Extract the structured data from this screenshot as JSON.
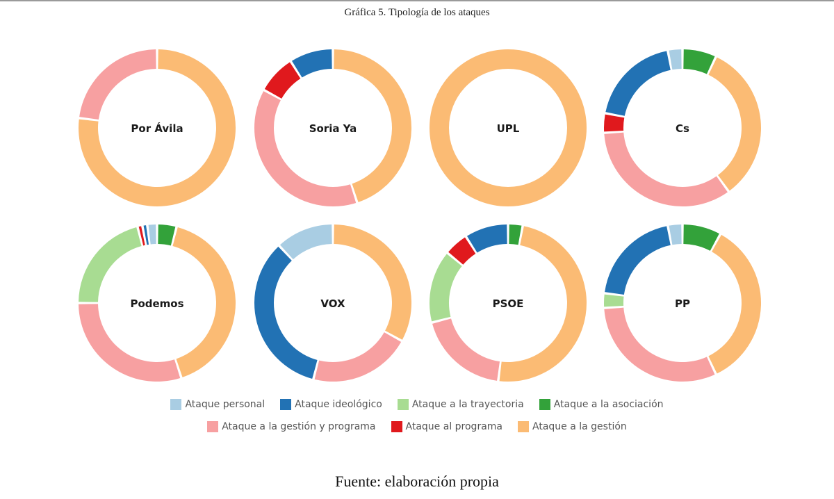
{
  "figure": {
    "title": "Gráfica 5. Tipología de los ataques",
    "source": "Fuente: elaboración propia"
  },
  "categories": [
    {
      "key": "personal",
      "label": "Ataque personal",
      "color": "#a9cde3"
    },
    {
      "key": "ideologico",
      "label": "Ataque ideológico",
      "color": "#2272b4"
    },
    {
      "key": "trayectoria",
      "label": "Ataque a la trayectoria",
      "color": "#a8dc92"
    },
    {
      "key": "asociacion",
      "label": "Ataque a la asociación",
      "color": "#33a23a"
    },
    {
      "key": "gestion_programa",
      "label": "Ataque a la gestión y programa",
      "color": "#f7a0a1"
    },
    {
      "key": "programa",
      "label": "Ataque al programa",
      "color": "#e0191d"
    },
    {
      "key": "gestion",
      "label": "Ataque a la gestión",
      "color": "#fbbb74"
    }
  ],
  "legend_rows": [
    [
      "personal",
      "ideologico",
      "trayectoria",
      "asociacion"
    ],
    [
      "gestion_programa",
      "programa",
      "gestion"
    ]
  ],
  "chart_data": {
    "type": "pie",
    "variant": "donut",
    "unit": "percent",
    "legend_position": "bottom",
    "grid": false,
    "charts": [
      {
        "name": "Por Ávila",
        "slices": {
          "gestion": 77,
          "gestion_programa": 23
        }
      },
      {
        "name": "Soria Ya",
        "slices": {
          "gestion": 45,
          "gestion_programa": 38,
          "programa": 8,
          "ideologico": 9
        }
      },
      {
        "name": "UPL",
        "slices": {
          "gestion": 100
        }
      },
      {
        "name": "Cs",
        "slices": {
          "asociacion": 7,
          "gestion": 33,
          "gestion_programa": 34,
          "programa": 4,
          "ideologico": 19,
          "personal": 3
        }
      },
      {
        "name": "Podemos",
        "slices": {
          "asociacion": 4,
          "gestion": 41,
          "gestion_programa": 30,
          "trayectoria": 21,
          "programa": 1,
          "ideologico": 1,
          "personal": 2
        }
      },
      {
        "name": "VOX",
        "slices": {
          "gestion": 33,
          "gestion_programa": 21,
          "ideologico": 34,
          "personal": 12
        }
      },
      {
        "name": "PSOE",
        "slices": {
          "asociacion": 3,
          "gestion": 49,
          "gestion_programa": 19,
          "trayectoria": 15,
          "programa": 5,
          "ideologico": 9
        }
      },
      {
        "name": "PP",
        "slices": {
          "asociacion": 8,
          "gestion": 35,
          "gestion_programa": 31,
          "trayectoria": 3,
          "ideologico": 20,
          "personal": 3
        }
      }
    ]
  }
}
